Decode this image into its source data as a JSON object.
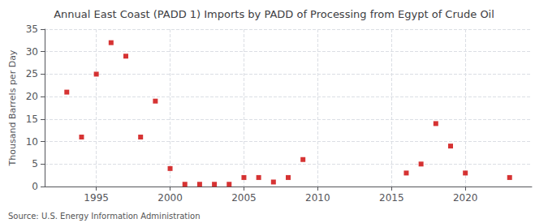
{
  "chart_data": {
    "type": "scatter",
    "title": "Annual East Coast (PADD 1) Imports by PADD of Processing from Egypt of Crude Oil",
    "ylabel": "Thousand Barrels per Day",
    "annotations": [
      "Source: U.S. Energy Information Administration"
    ],
    "x": [
      1993,
      1994,
      1995,
      1996,
      1997,
      1998,
      1999,
      2000,
      2001,
      2002,
      2003,
      2004,
      2005,
      2006,
      2007,
      2008,
      2009,
      2016,
      2017,
      2018,
      2019,
      2020,
      2023
    ],
    "values": [
      21,
      11,
      25,
      32,
      29,
      11,
      19,
      4,
      0.5,
      0.5,
      0.5,
      0.5,
      2,
      2,
      1,
      2,
      6,
      3,
      5,
      14,
      9,
      3,
      2
    ],
    "color": "#cc0000",
    "marker": "square",
    "xlim": [
      1991.5,
      2024.5
    ],
    "xticks": [
      1995,
      2000,
      2005,
      2010,
      2015,
      2020
    ],
    "ylim": [
      0,
      35
    ],
    "yticks": [
      0,
      5,
      10,
      15,
      20,
      25,
      30,
      35
    ],
    "grid": true
  }
}
